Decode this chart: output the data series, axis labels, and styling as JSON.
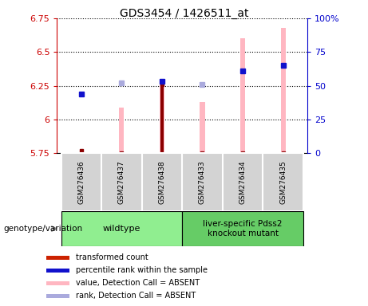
{
  "title": "GDS3454 / 1426511_at",
  "samples": [
    "GSM276436",
    "GSM276437",
    "GSM276438",
    "GSM276433",
    "GSM276434",
    "GSM276435"
  ],
  "red_values": [
    5.77,
    5.75,
    6.26,
    5.75,
    5.75,
    5.75
  ],
  "pink_values": [
    null,
    6.09,
    6.26,
    6.13,
    6.6,
    6.68
  ],
  "blue_values": [
    6.19,
    null,
    6.285,
    null,
    6.36,
    6.4
  ],
  "light_blue_values": [
    null,
    6.27,
    null,
    6.257,
    null,
    null
  ],
  "ylim_left": [
    5.75,
    6.75
  ],
  "ylim_right": [
    0,
    100
  ],
  "yticks_left": [
    5.75,
    6.0,
    6.25,
    6.5,
    6.75
  ],
  "yticks_right": [
    0,
    25,
    50,
    75,
    100
  ],
  "ytick_labels_left": [
    "5.75",
    "6",
    "6.25",
    "6.5",
    "6.75"
  ],
  "ytick_labels_right": [
    "0",
    "25",
    "50",
    "75",
    "100%"
  ],
  "left_axis_color": "#cc0000",
  "right_axis_color": "#0000cc",
  "bar_bottom": 5.75,
  "bar_width": 0.12,
  "pink_color": "#ffb6c1",
  "dark_red_color": "#8b0000",
  "blue_marker_color": "#1111cc",
  "light_blue_color": "#aaaadd",
  "sample_box_color": "#d3d3d3",
  "wt_group_color": "#90ee90",
  "ko_group_color": "#66cc66",
  "legend_items": [
    [
      "#cc2200",
      "transformed count"
    ],
    [
      "#1111cc",
      "percentile rank within the sample"
    ],
    [
      "#ffb6c1",
      "value, Detection Call = ABSENT"
    ],
    [
      "#aaaadd",
      "rank, Detection Call = ABSENT"
    ]
  ]
}
